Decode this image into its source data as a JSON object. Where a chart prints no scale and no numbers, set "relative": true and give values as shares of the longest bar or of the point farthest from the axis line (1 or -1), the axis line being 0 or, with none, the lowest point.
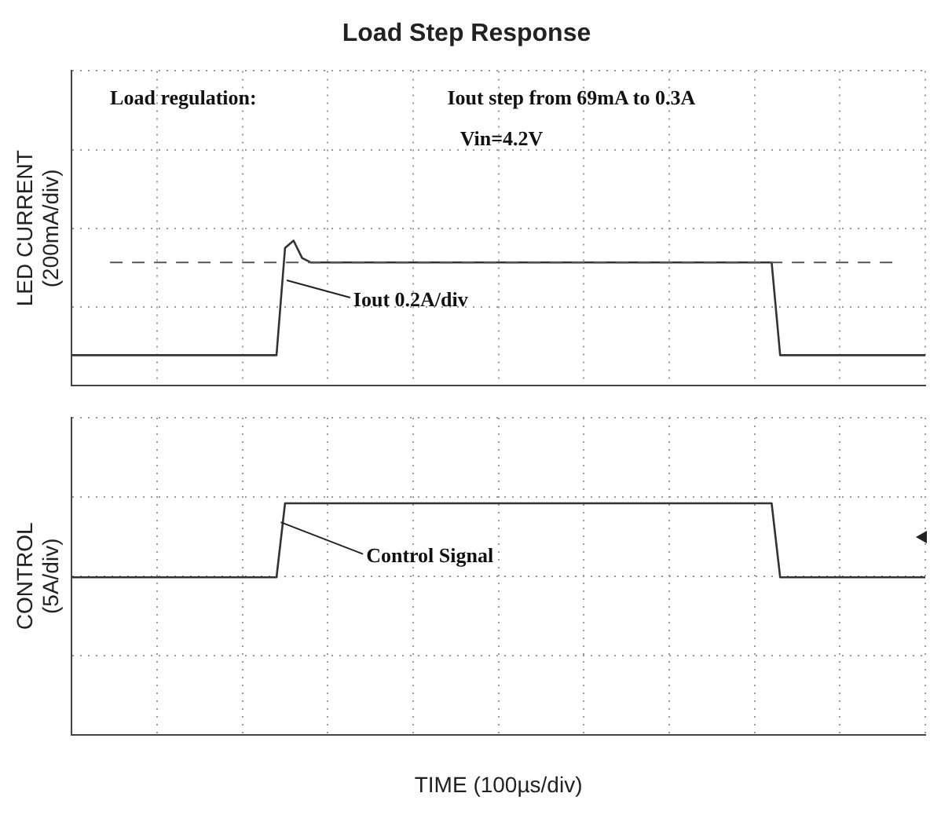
{
  "chart_data": [
    {
      "type": "line",
      "title": "Load Step Response",
      "ylabel": "LED CURRENT\n(200mA/div)",
      "relative": true,
      "grid": true,
      "legend": false,
      "marker": "none",
      "line_style": "solid",
      "annotations": [
        "Load regulation:",
        "Iout step from 69mA to 0.3A",
        "Vin=4.2V",
        "Iout 0.2A/div"
      ],
      "ref_lines": [
        {
          "axis": "y",
          "value": 0.85,
          "line_style": "dashed",
          "color": "#555555"
        }
      ],
      "categories": [
        null,
        null,
        null,
        null,
        null,
        null,
        null,
        null,
        null,
        null,
        null,
        null,
        null,
        null,
        null,
        null,
        null,
        null,
        null,
        null,
        null,
        null,
        null,
        null,
        null,
        null,
        null,
        null,
        null,
        null,
        null,
        null,
        null,
        null,
        null,
        null,
        null,
        null,
        null,
        null,
        null,
        null,
        null,
        null,
        null,
        null,
        null,
        null,
        null,
        null,
        null,
        null,
        null,
        null,
        null,
        null,
        null,
        null,
        null,
        null,
        null,
        null,
        null,
        null,
        null,
        null,
        null,
        null,
        null,
        null,
        null,
        null,
        null,
        null,
        null,
        null,
        null,
        null,
        null,
        null,
        null,
        null,
        null,
        null,
        null,
        null,
        null,
        null,
        null,
        null,
        null,
        null,
        null,
        null,
        null,
        null,
        null,
        null,
        null,
        null,
        null
      ],
      "series": [
        {
          "color": "#333333",
          "values": [
            0.21,
            0.21,
            0.21,
            0.21,
            0.21,
            0.21,
            0.21,
            0.21,
            0.21,
            0.21,
            0.21,
            0.21,
            0.21,
            0.21,
            0.21,
            0.21,
            0.21,
            0.21,
            0.21,
            0.21,
            0.21,
            0.21,
            0.21,
            0.21,
            0.21,
            0.95,
            1,
            0.88,
            0.85,
            0.85,
            0.85,
            0.85,
            0.85,
            0.85,
            0.85,
            0.85,
            0.85,
            0.85,
            0.85,
            0.85,
            0.85,
            0.85,
            0.85,
            0.85,
            0.85,
            0.85,
            0.85,
            0.85,
            0.85,
            0.85,
            0.85,
            0.85,
            0.85,
            0.85,
            0.85,
            0.85,
            0.85,
            0.85,
            0.85,
            0.85,
            0.85,
            0.85,
            0.85,
            0.85,
            0.85,
            0.85,
            0.85,
            0.85,
            0.85,
            0.85,
            0.85,
            0.85,
            0.85,
            0.85,
            0.85,
            0.85,
            0.85,
            0.85,
            0.85,
            0.85,
            0.85,
            0.85,
            0.85,
            0.21,
            0.21,
            0.21,
            0.21,
            0.21,
            0.21,
            0.21,
            0.21,
            0.21,
            0.21,
            0.21,
            0.21,
            0.21,
            0.21,
            0.21,
            0.21,
            0.21,
            0.21
          ]
        }
      ]
    },
    {
      "type": "line",
      "ylabel": "CONTROL\n(5A/div)",
      "xlabel": "TIME (100µs/div)",
      "relative": true,
      "grid": true,
      "legend": false,
      "marker": "none",
      "line_style": "solid",
      "annotations": [
        "Control Signal"
      ],
      "categories": [
        null,
        null,
        null,
        null,
        null,
        null,
        null,
        null,
        null,
        null,
        null,
        null,
        null,
        null,
        null,
        null,
        null,
        null,
        null,
        null,
        null,
        null,
        null,
        null,
        null,
        null,
        null,
        null,
        null,
        null,
        null,
        null,
        null,
        null,
        null,
        null,
        null,
        null,
        null,
        null,
        null,
        null,
        null,
        null,
        null,
        null,
        null,
        null,
        null,
        null,
        null,
        null,
        null,
        null,
        null,
        null,
        null,
        null,
        null,
        null,
        null,
        null,
        null,
        null,
        null,
        null,
        null,
        null,
        null,
        null,
        null,
        null,
        null,
        null,
        null,
        null,
        null,
        null,
        null,
        null,
        null,
        null,
        null,
        null,
        null,
        null,
        null,
        null,
        null,
        null,
        null,
        null,
        null,
        null,
        null,
        null,
        null,
        null,
        null,
        null,
        null
      ],
      "series": [
        {
          "color": "#333333",
          "values": [
            0.68,
            0.68,
            0.68,
            0.68,
            0.68,
            0.68,
            0.68,
            0.68,
            0.68,
            0.68,
            0.68,
            0.68,
            0.68,
            0.68,
            0.68,
            0.68,
            0.68,
            0.68,
            0.68,
            0.68,
            0.68,
            0.68,
            0.68,
            0.68,
            0.68,
            1,
            1,
            1,
            1,
            1,
            1,
            1,
            1,
            1,
            1,
            1,
            1,
            1,
            1,
            1,
            1,
            1,
            1,
            1,
            1,
            1,
            1,
            1,
            1,
            1,
            1,
            1,
            1,
            1,
            1,
            1,
            1,
            1,
            1,
            1,
            1,
            1,
            1,
            1,
            1,
            1,
            1,
            1,
            1,
            1,
            1,
            1,
            1,
            1,
            1,
            1,
            1,
            1,
            1,
            1,
            1,
            1,
            1,
            0.68,
            0.68,
            0.68,
            0.68,
            0.68,
            0.68,
            0.68,
            0.68,
            0.68,
            0.68,
            0.68,
            0.68,
            0.68,
            0.68,
            0.68,
            0.68,
            0.68,
            0.68
          ]
        }
      ]
    }
  ]
}
